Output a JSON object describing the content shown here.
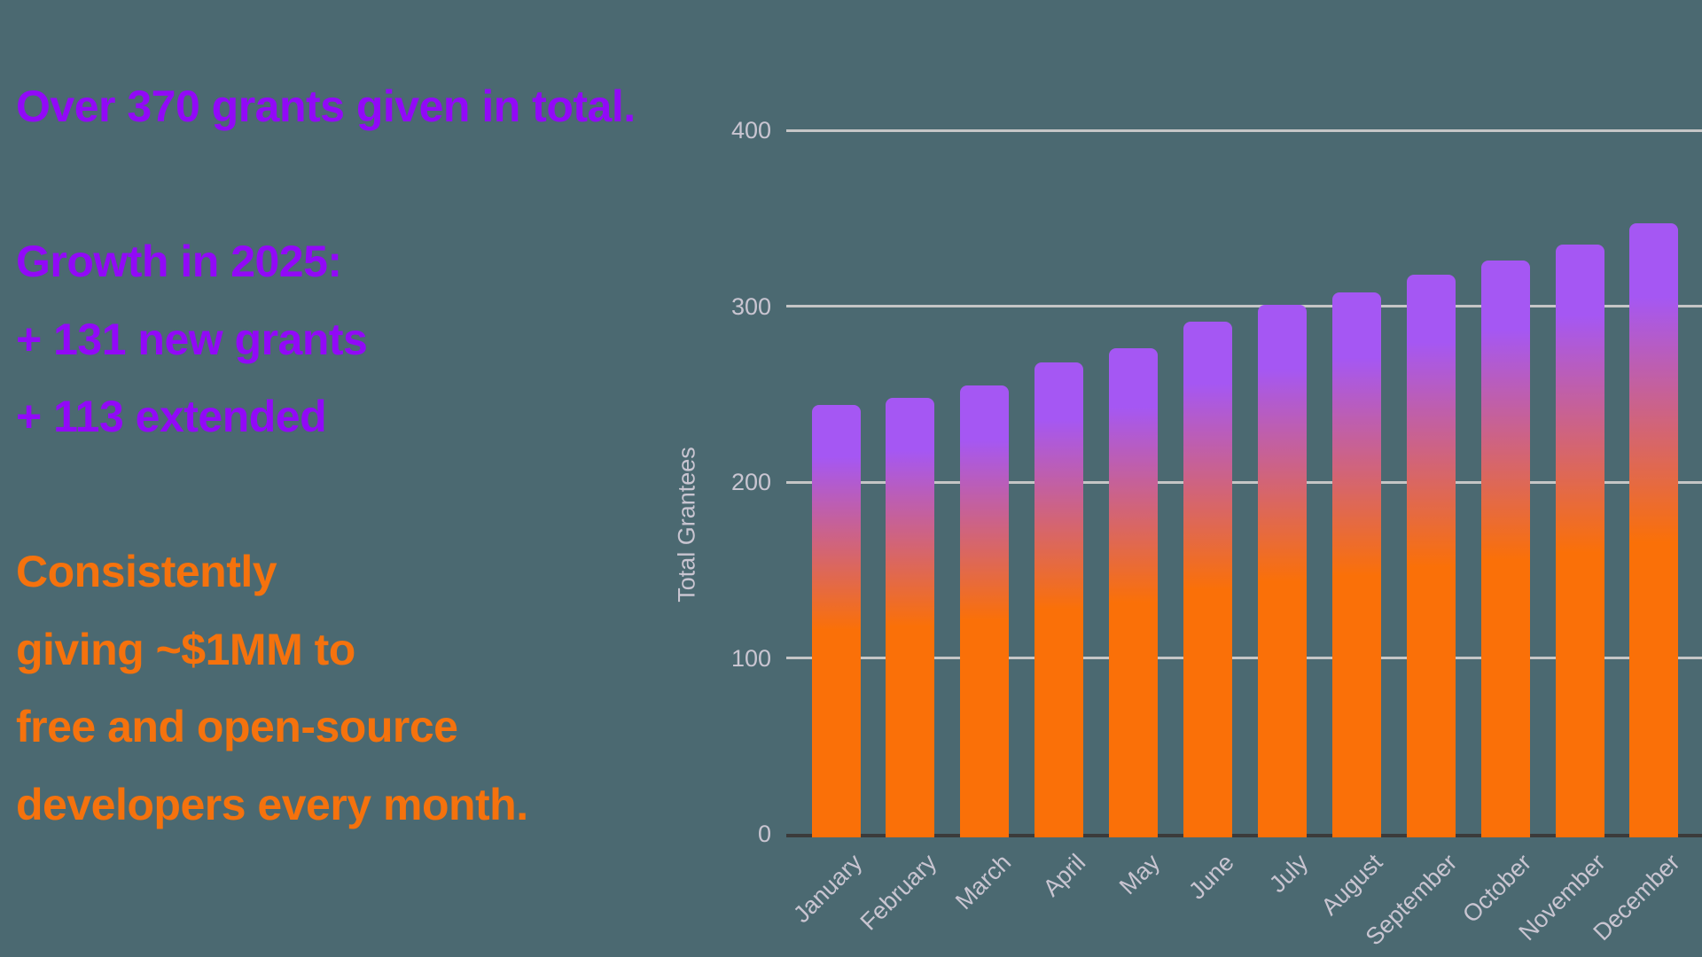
{
  "colors": {
    "background": "#4B6971",
    "purple_text": "#9209F7",
    "orange_text": "#F5720D",
    "bar_top_purple": "#A557F3",
    "bar_bottom_orange": "#FA7008",
    "gridline": "#C5C6C6",
    "baseline": "#3B3B3B",
    "axis_text": "#C9C5D1"
  },
  "text_block": {
    "lines": [
      {
        "text": "Over 370 grants given in total.",
        "color_role": "purple"
      },
      {
        "text": "Growth in 2025:",
        "color_role": "purple"
      },
      {
        "text": "+ 131 new grants",
        "color_role": "purple"
      },
      {
        "text": "+ 113 extended",
        "color_role": "purple"
      },
      {
        "text": "Consistently",
        "color_role": "orange"
      },
      {
        "text": "giving ~$1MM to",
        "color_role": "orange"
      },
      {
        "text": "free and open-source",
        "color_role": "orange"
      },
      {
        "text": "developers every month.",
        "color_role": "orange"
      }
    ]
  },
  "chart_data": {
    "type": "bar",
    "title": "",
    "xlabel": "",
    "ylabel": "Total Grantees",
    "categories": [
      "January",
      "February",
      "March",
      "April",
      "May",
      "June",
      "July",
      "August",
      "September",
      "October",
      "November",
      "December"
    ],
    "values": [
      244,
      248,
      255,
      268,
      276,
      291,
      301,
      308,
      318,
      326,
      335,
      347
    ],
    "yticks": [
      0,
      100,
      200,
      300,
      400
    ],
    "ylim": [
      0,
      400
    ],
    "grid": "horizontal",
    "legend": "none",
    "bar_gradient_top_to_bottom": [
      "#A557F3",
      "#FA7008"
    ]
  }
}
